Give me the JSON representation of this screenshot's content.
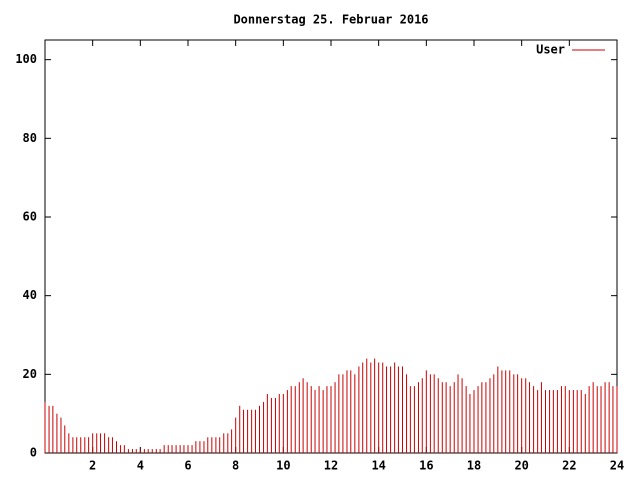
{
  "chart_data": {
    "type": "impulses",
    "title": "Donnerstag 25. Februar 2016",
    "series": [
      {
        "name": "User",
        "color": "#cc0000",
        "x": [
          0,
          0.17,
          0.33,
          0.5,
          0.67,
          0.83,
          1,
          1.17,
          1.33,
          1.5,
          1.67,
          1.83,
          2,
          2.17,
          2.33,
          2.5,
          2.67,
          2.83,
          3,
          3.17,
          3.33,
          3.5,
          3.67,
          3.83,
          4,
          4.17,
          4.33,
          4.5,
          4.67,
          4.83,
          5,
          5.17,
          5.33,
          5.5,
          5.67,
          5.83,
          6,
          6.17,
          6.33,
          6.5,
          6.67,
          6.83,
          7,
          7.17,
          7.33,
          7.5,
          7.67,
          7.83,
          8,
          8.17,
          8.33,
          8.5,
          8.67,
          8.83,
          9,
          9.17,
          9.33,
          9.5,
          9.67,
          9.83,
          10,
          10.17,
          10.33,
          10.5,
          10.67,
          10.83,
          11,
          11.17,
          11.33,
          11.5,
          11.67,
          11.83,
          12,
          12.17,
          12.33,
          12.5,
          12.67,
          12.83,
          13,
          13.17,
          13.33,
          13.5,
          13.67,
          13.83,
          14,
          14.17,
          14.33,
          14.5,
          14.67,
          14.83,
          15,
          15.17,
          15.33,
          15.5,
          15.67,
          15.83,
          16,
          16.17,
          16.33,
          16.5,
          16.67,
          16.83,
          17,
          17.17,
          17.33,
          17.5,
          17.67,
          17.83,
          18,
          18.17,
          18.33,
          18.5,
          18.67,
          18.83,
          19,
          19.17,
          19.33,
          19.5,
          19.67,
          19.83,
          20,
          20.17,
          20.33,
          20.5,
          20.67,
          20.83,
          21,
          21.17,
          21.33,
          21.5,
          21.67,
          21.83,
          22,
          22.17,
          22.33,
          22.5,
          22.67,
          22.83,
          23,
          23.17,
          23.33,
          23.5,
          23.67,
          23.83,
          24
        ],
        "values": [
          13,
          12,
          12,
          10,
          9,
          7,
          5,
          4,
          4,
          4,
          4,
          4,
          5,
          5,
          5,
          5,
          4,
          4,
          3,
          2,
          2,
          1,
          1,
          1,
          1,
          1,
          1,
          1,
          1,
          1,
          2,
          2,
          2,
          2,
          2,
          2,
          2,
          2,
          3,
          3,
          3,
          4,
          4,
          4,
          4,
          5,
          5,
          6,
          9,
          12,
          11,
          11,
          11,
          11,
          12,
          13,
          15,
          14,
          14,
          15,
          15,
          16,
          17,
          17,
          18,
          19,
          18,
          17,
          16,
          17,
          16,
          17,
          17,
          18,
          20,
          20,
          21,
          21,
          20,
          22,
          23,
          24,
          23,
          24,
          23,
          23,
          22,
          22,
          23,
          22,
          22,
          20,
          17,
          17,
          18,
          19,
          21,
          20,
          20,
          19,
          18,
          18,
          17,
          18,
          20,
          19,
          17,
          15,
          16,
          17,
          18,
          18,
          19,
          20,
          22,
          21,
          21,
          21,
          20,
          20,
          19,
          19,
          18,
          17,
          16,
          18,
          16,
          16,
          16,
          16,
          17,
          17,
          16,
          16,
          16,
          16,
          15,
          17,
          18,
          17,
          17,
          18,
          18,
          17,
          17
        ]
      }
    ],
    "xlim": [
      0,
      24
    ],
    "xticks": [
      2,
      4,
      6,
      8,
      10,
      12,
      14,
      16,
      18,
      20,
      22,
      24
    ],
    "ylim": [
      0,
      105
    ],
    "yticks": [
      0,
      20,
      40,
      60,
      80,
      100
    ],
    "legend": "top-right"
  }
}
